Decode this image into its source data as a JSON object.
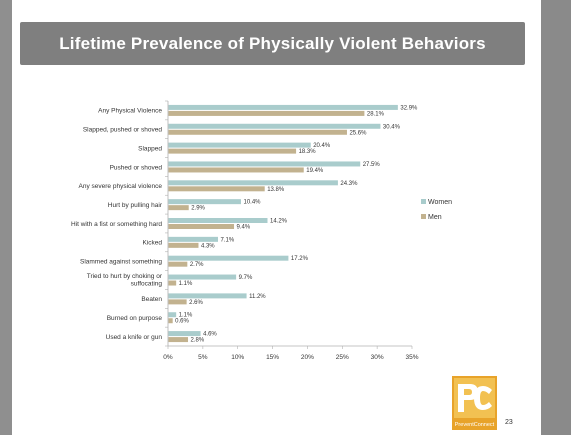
{
  "slide": {
    "title": "Lifetime Prevalence of Physically Violent Behaviors",
    "page_number": "23",
    "logo_text": "PreventConnect"
  },
  "colors": {
    "women": "#a9cccc",
    "men": "#c2b28f",
    "axis": "#b0b0b0"
  },
  "chart_data": {
    "type": "bar",
    "orientation": "horizontal",
    "title": "",
    "xlabel": "",
    "ylabel": "",
    "xlim": [
      0,
      35
    ],
    "x_ticks": [
      "0%",
      "5%",
      "10%",
      "15%",
      "20%",
      "25%",
      "30%",
      "35%"
    ],
    "x_tick_values": [
      0,
      5,
      10,
      15,
      20,
      25,
      30,
      35
    ],
    "categories": [
      "Any Physical Violence",
      "Slapped, pushed or shoved",
      "Slapped",
      "Pushed or shoved",
      "Any severe physical violence",
      "Hurt by pulling hair",
      "Hit with a fist or something hard",
      "Kicked",
      "Slammed against something",
      "Tried to hurt by choking or suffocating",
      "Beaten",
      "Burned on purpose",
      "Used a knife or gun"
    ],
    "series": [
      {
        "name": "Women",
        "values": [
          32.9,
          30.4,
          20.4,
          27.5,
          24.3,
          10.4,
          14.2,
          7.1,
          17.2,
          9.7,
          11.2,
          1.1,
          4.6
        ],
        "labels": [
          "32.9%",
          "30.4%",
          "20.4%",
          "27.5%",
          "24.3%",
          "10.4%",
          "14.2%",
          "7.1%",
          "17.2%",
          "9.7%",
          "11.2%",
          "1.1%",
          "4.6%"
        ]
      },
      {
        "name": "Men",
        "values": [
          28.1,
          25.6,
          18.3,
          19.4,
          13.8,
          2.9,
          9.4,
          4.3,
          2.7,
          1.1,
          2.6,
          0.6,
          2.8
        ],
        "labels": [
          "28.1%",
          "25.6%",
          "18.3%",
          "19.4%",
          "13.8%",
          "2.9%",
          "9.4%",
          "4.3%",
          "2.7%",
          "1.1%",
          "2.6%",
          "0.6%",
          "2.8%"
        ]
      }
    ],
    "legend": {
      "placement": "right"
    },
    "grid": false
  }
}
